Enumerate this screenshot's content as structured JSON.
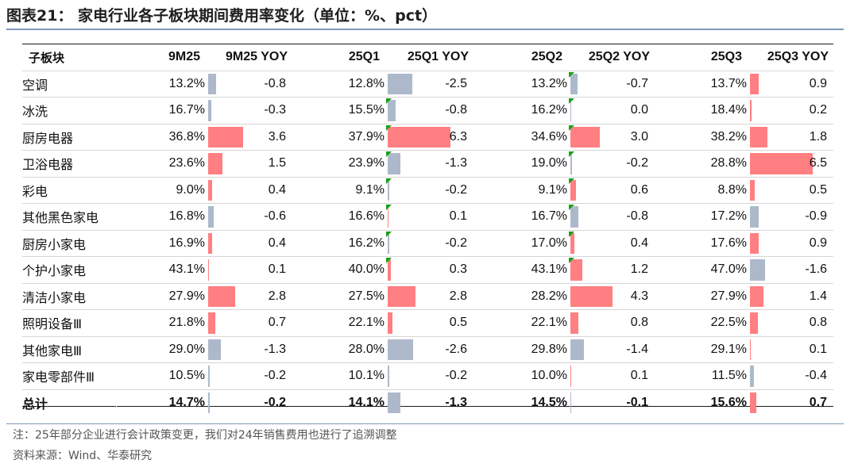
{
  "title": "图表21： 家电行业各子板块期间费用率变化（单位：%、pct）",
  "table": {
    "headers": [
      "子板块",
      "9M25",
      "9M25 YOY",
      "25Q1",
      "25Q1 YOY",
      "25Q2",
      "25Q2 YOY",
      "25Q3",
      "25Q3 YOY"
    ],
    "rows": [
      {
        "name": "空调",
        "cells": [
          "13.2%",
          "-0.8",
          "12.8%",
          "-2.5",
          "13.2%",
          "-0.7",
          "13.7%",
          "0.9"
        ]
      },
      {
        "name": "冰洗",
        "cells": [
          "16.7%",
          "-0.3",
          "15.5%",
          "-0.8",
          "16.2%",
          "0.0",
          "18.4%",
          "0.2"
        ]
      },
      {
        "name": "厨房电器",
        "cells": [
          "36.8%",
          "3.6",
          "37.9%",
          "6.3",
          "34.6%",
          "3.0",
          "38.2%",
          "1.8"
        ]
      },
      {
        "name": "卫浴电器",
        "cells": [
          "23.6%",
          "1.5",
          "23.9%",
          "-1.3",
          "19.0%",
          "-0.2",
          "28.8%",
          "6.5"
        ]
      },
      {
        "name": "彩电",
        "cells": [
          "9.0%",
          "0.4",
          "9.1%",
          "-0.2",
          "9.1%",
          "0.6",
          "8.8%",
          "0.5"
        ]
      },
      {
        "name": "其他黑色家电",
        "cells": [
          "16.8%",
          "-0.6",
          "16.6%",
          "0.1",
          "16.7%",
          "-0.8",
          "17.2%",
          "-0.9"
        ]
      },
      {
        "name": "厨房小家电",
        "cells": [
          "16.9%",
          "0.4",
          "16.2%",
          "-0.2",
          "17.0%",
          "0.4",
          "17.6%",
          "0.9"
        ]
      },
      {
        "name": "个护小家电",
        "cells": [
          "43.1%",
          "0.1",
          "40.0%",
          "0.3",
          "43.1%",
          "1.2",
          "47.0%",
          "-1.6"
        ]
      },
      {
        "name": "清洁小家电",
        "cells": [
          "27.9%",
          "2.8",
          "27.5%",
          "2.8",
          "28.2%",
          "4.3",
          "27.9%",
          "1.4"
        ]
      },
      {
        "name": "照明设备Ⅲ",
        "cells": [
          "21.8%",
          "0.7",
          "22.1%",
          "0.5",
          "22.1%",
          "0.8",
          "22.5%",
          "0.8"
        ]
      },
      {
        "name": "其他家电Ⅲ",
        "cells": [
          "29.0%",
          "-1.3",
          "28.0%",
          "-2.6",
          "29.8%",
          "-1.4",
          "29.1%",
          "0.1"
        ]
      },
      {
        "name": "家电零部件Ⅲ",
        "cells": [
          "10.5%",
          "-0.2",
          "10.1%",
          "-0.2",
          "10.0%",
          "0.1",
          "11.5%",
          "-0.4"
        ]
      },
      {
        "name": "总计",
        "cells": [
          "14.7%",
          "-0.2",
          "14.1%",
          "-1.3",
          "14.5%",
          "-0.1",
          "15.6%",
          "0.7"
        ]
      }
    ],
    "flag_color": "#18a018",
    "positive_bar_color": "#ff7f82",
    "negative_bar_color": "#adb9cb"
  },
  "notes": {
    "note": "注：25年部分企业进行会计政策变更，我们对24年销售费用也进行了追溯调整",
    "source": "资料来源：Wind、华泰研究"
  }
}
